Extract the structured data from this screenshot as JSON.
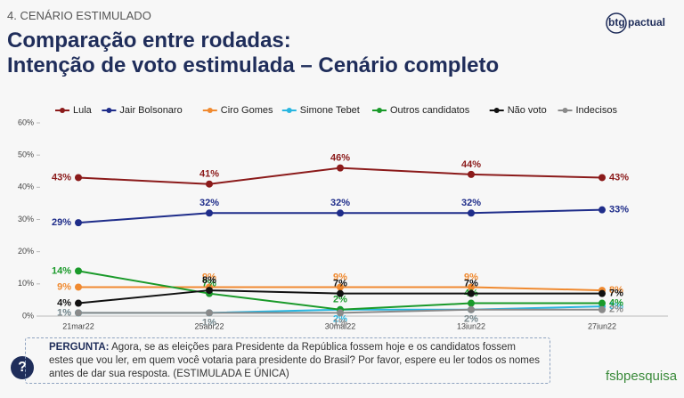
{
  "header": {
    "section": "4. CENÁRIO ESTIMULADO",
    "title": [
      "Comparação entre rodadas:",
      "Intenção de voto estimulada – Cenário completo"
    ],
    "logo": "btg pactual"
  },
  "question": {
    "label": "PERGUNTA:",
    "text": "Agora, se as eleições para Presidente da República fossem hoje e os candidatos fossem estes que vou ler, em quem você votaria para presidente do Brasil? Por favor, espere eu ler todos os nomes antes de dar sua resposta. (ESTIMULADA E ÚNICA)"
  },
  "footer": {
    "logo": "fsbpesquisa"
  },
  "chart_data": {
    "type": "line",
    "categories": [
      "21mar22",
      "25abr22",
      "30mai22",
      "13jun22",
      "27jun22"
    ],
    "ylim": [
      0,
      60
    ],
    "yticks": [
      {
        "value": 0,
        "label": "0%"
      },
      {
        "value": 10,
        "label": "10%"
      },
      {
        "value": 20,
        "label": "20%"
      },
      {
        "value": 30,
        "label": "30%"
      },
      {
        "value": 40,
        "label": "40%"
      },
      {
        "value": 50,
        "label": "50%"
      },
      {
        "value": 60,
        "label": "60%"
      }
    ],
    "grid": false,
    "legend": "top",
    "series": [
      {
        "name": "Lula",
        "color": "#8b1a1a",
        "values": [
          43,
          41,
          46,
          44,
          43
        ],
        "value_labels": [
          "43%",
          "41%",
          "46%",
          "44%",
          "43%"
        ]
      },
      {
        "name": "Jair Bolsonaro",
        "color": "#1f2d8a",
        "values": [
          29,
          32,
          32,
          32,
          33
        ],
        "value_labels": [
          "29%",
          "32%",
          "32%",
          "32%",
          "33%"
        ]
      },
      {
        "name": "Ciro Gomes",
        "color": "#f08a30",
        "values": [
          9,
          9,
          9,
          9,
          8
        ],
        "value_labels": [
          "9%",
          "9%",
          "9%",
          "9%",
          "8%"
        ]
      },
      {
        "name": "Simone Tebet",
        "color": "#29b6e0",
        "values": [
          1,
          1,
          2,
          2,
          3
        ],
        "value_labels": [
          "1%",
          "1%",
          "2%",
          "2%",
          "3%"
        ]
      },
      {
        "name": "Outros candidatos",
        "color": "#1a9a2a",
        "values": [
          14,
          7,
          2,
          4,
          4
        ],
        "value_labels": [
          "14%",
          "7%",
          "2%",
          "4%",
          "4%"
        ]
      },
      {
        "name": "Não voto",
        "color": "#111111",
        "values": [
          4,
          8,
          7,
          7,
          7
        ],
        "value_labels": [
          "4%",
          "8%",
          "7%",
          "7%",
          "7%"
        ]
      },
      {
        "name": "Indecisos",
        "color": "#8a8a8a",
        "values": [
          1,
          1,
          1,
          2,
          2
        ],
        "value_labels": [
          "1%",
          "1%",
          "1%",
          "2%",
          "2%"
        ]
      }
    ]
  }
}
